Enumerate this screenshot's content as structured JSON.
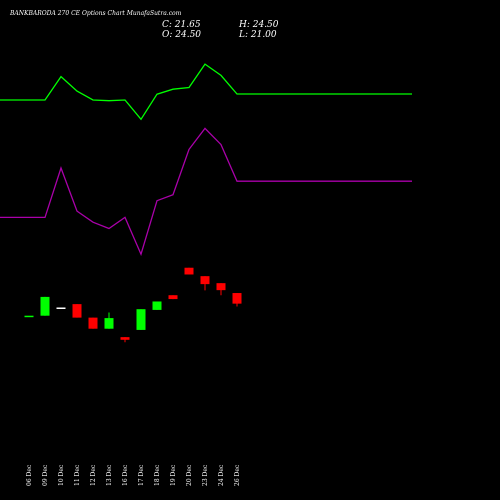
{
  "header": {
    "title": "BANKBARODA 270  CE Options  Chart MunafaSutra.com",
    "close_label": "C: 21.65",
    "high_label": "H: 24.50",
    "open_label": "O: 24.50",
    "low_label": "L: 21.00"
  },
  "colors": {
    "background": "#000000",
    "up_candle": "#00ff00",
    "down_candle": "#ff0000",
    "neutral_candle": "#ffffff",
    "upper_band": "#00ff00",
    "lower_band": "#aa00aa",
    "text": "#ffffff"
  },
  "chart_data": {
    "type": "candlestick",
    "title": "BANKBARODA 270  CE Options  Chart MunafaSutra.com",
    "categories": [
      "06 Dec",
      "09 Dec",
      "10 Dec",
      "11 Dec",
      "12 Dec",
      "13 Dec",
      "16 Dec",
      "17 Dec",
      "18 Dec",
      "19 Dec",
      "20 Dec",
      "23 Dec",
      "24 Dec",
      "26 Dec"
    ],
    "candles": [
      {
        "date": "06 Dec",
        "open": 0.105,
        "close": 0.105,
        "high": 0.105,
        "low": 0.105,
        "direction": "up"
      },
      {
        "date": "09 Dec",
        "open": 0.105,
        "close": 0.183,
        "high": 0.183,
        "low": 0.105,
        "direction": "up"
      },
      {
        "date": "10 Dec",
        "open": 0.139,
        "close": 0.139,
        "high": 0.139,
        "low": 0.139,
        "direction": "flat"
      },
      {
        "date": "11 Dec",
        "open": 0.153,
        "close": 0.097,
        "high": 0.153,
        "low": 0.097,
        "direction": "down"
      },
      {
        "date": "12 Dec",
        "open": 0.097,
        "close": 0.051,
        "high": 0.097,
        "low": 0.051,
        "direction": "down"
      },
      {
        "date": "13 Dec",
        "open": 0.051,
        "close": 0.095,
        "high": 0.118,
        "low": 0.051,
        "direction": "up"
      },
      {
        "date": "16 Dec",
        "open": 0.016,
        "close": 0.005,
        "high": 0.016,
        "low": -0.005,
        "direction": "down"
      },
      {
        "date": "17 Dec",
        "open": 0.046,
        "close": 0.132,
        "high": 0.132,
        "low": 0.046,
        "direction": "up"
      },
      {
        "date": "18 Dec",
        "open": 0.129,
        "close": 0.164,
        "high": 0.164,
        "low": 0.129,
        "direction": "up"
      },
      {
        "date": "19 Dec",
        "open": 0.19,
        "close": 0.174,
        "high": 0.19,
        "low": 0.174,
        "direction": "down"
      },
      {
        "date": "20 Dec",
        "open": 0.304,
        "close": 0.276,
        "high": 0.304,
        "low": 0.276,
        "direction": "down"
      },
      {
        "date": "23 Dec",
        "open": 0.269,
        "close": 0.236,
        "high": 0.269,
        "low": 0.21,
        "direction": "down"
      },
      {
        "date": "24 Dec",
        "open": 0.24,
        "close": 0.211,
        "high": 0.24,
        "low": 0.19,
        "direction": "down"
      },
      {
        "date": "26 Dec",
        "open": 0.199,
        "close": 0.155,
        "high": 0.199,
        "low": 0.143,
        "direction": "down"
      }
    ],
    "series": [
      {
        "values": [
          1.0,
          1.0,
          1.097,
          1.037,
          1.0,
          0.997,
          1.0,
          0.92,
          1.024,
          1.045,
          1.052,
          1.149,
          1.102,
          1.025
        ]
      },
      {
        "values": [
          0.513,
          0.513,
          0.718,
          0.539,
          0.493,
          0.467,
          0.513,
          0.36,
          0.582,
          0.607,
          0.795,
          0.882,
          0.815,
          0.663
        ]
      }
    ],
    "ylim": [
      -0.1,
      1.3
    ]
  }
}
